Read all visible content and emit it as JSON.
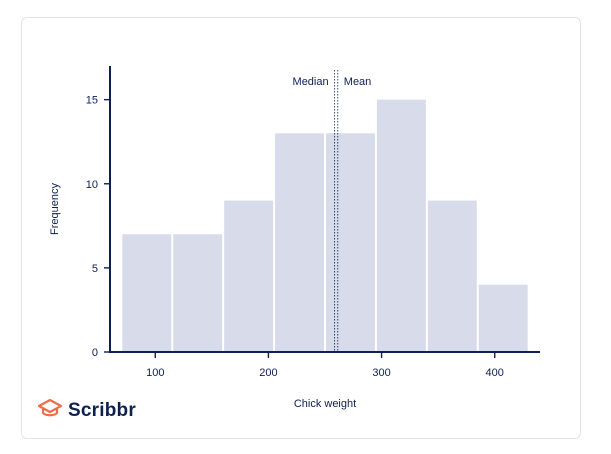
{
  "brand": {
    "name": "Scribbr",
    "icon": "scribbr-logo-icon",
    "colors": {
      "primary": "#0d2050",
      "accent": "#ee6d49"
    }
  },
  "chart_data": {
    "type": "bar",
    "title": "",
    "xlabel": "Chick weight",
    "ylabel": "Frequency",
    "bin_edges": [
      70,
      115,
      160,
      205,
      250,
      295,
      340,
      385,
      430
    ],
    "values": [
      7,
      7,
      9,
      13,
      13,
      15,
      9,
      4
    ],
    "x_ticks": [
      100,
      200,
      300,
      400
    ],
    "y_ticks": [
      0,
      5,
      10,
      15
    ],
    "xlim": [
      60,
      440
    ],
    "ylim": [
      0,
      17
    ],
    "grid": false,
    "bar_color": "#d7dbea",
    "axis_color": "#0d2050",
    "annotations": [
      {
        "label": "Median",
        "x": 258.5
      },
      {
        "label": "Mean",
        "x": 261.3
      }
    ]
  }
}
